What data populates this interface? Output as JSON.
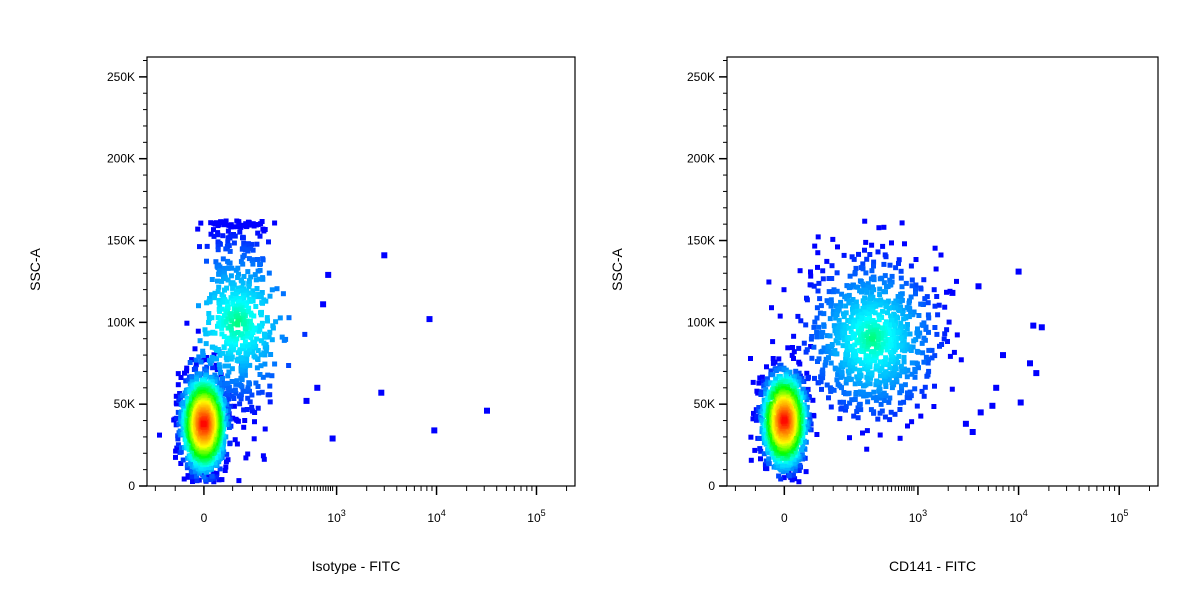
{
  "chart_data": [
    {
      "type": "scatter",
      "title": "",
      "xlabel": "Isotype - FITC",
      "ylabel": "SSC-A",
      "x_scale": "biexponential (linear near 0, log above)",
      "x_ticks": [
        {
          "value": 0,
          "label": "0"
        },
        {
          "value": 1000,
          "label": "10",
          "exp": "3"
        },
        {
          "value": 10000,
          "label": "10",
          "exp": "4"
        },
        {
          "value": 100000,
          "label": "10",
          "exp": "5"
        }
      ],
      "y_ticks": [
        {
          "value": 0,
          "label": "0"
        },
        {
          "value": 50000,
          "label": "50K"
        },
        {
          "value": 100000,
          "label": "100K"
        },
        {
          "value": 150000,
          "label": "150K"
        },
        {
          "value": 200000,
          "label": "200K"
        },
        {
          "value": 250000,
          "label": "250K"
        }
      ],
      "ylim": [
        0,
        262144
      ],
      "grid": false,
      "colormap": [
        "#0000ff",
        "#0080ff",
        "#00ffff",
        "#00ff00",
        "#ffff00",
        "#ff8000",
        "#ff0000"
      ],
      "populations": [
        {
          "x_center": 0,
          "y_center": 38000,
          "count": 1400,
          "density": "high"
        },
        {
          "x_center": 60,
          "y_center": 100000,
          "count": 600,
          "density": "low",
          "y_max": 162000
        }
      ],
      "outliers": [
        {
          "x": 3000,
          "y": 141000
        },
        {
          "x": 800,
          "y": 129000
        },
        {
          "x": 700,
          "y": 111000
        },
        {
          "x": 8500,
          "y": 102000
        },
        {
          "x": 2800,
          "y": 57000
        },
        {
          "x": 32000,
          "y": 46000
        },
        {
          "x": 9500,
          "y": 34000
        },
        {
          "x": 900,
          "y": 29000
        },
        {
          "x": 600,
          "y": 60000
        },
        {
          "x": 450,
          "y": 52000
        }
      ]
    },
    {
      "type": "scatter",
      "title": "",
      "xlabel": "CD141 - FITC",
      "ylabel": "SSC-A",
      "x_scale": "biexponential (linear near 0, log above)",
      "x_ticks": [
        {
          "value": 0,
          "label": "0"
        },
        {
          "value": 1000,
          "label": "10",
          "exp": "3"
        },
        {
          "value": 10000,
          "label": "10",
          "exp": "4"
        },
        {
          "value": 100000,
          "label": "10",
          "exp": "5"
        }
      ],
      "y_ticks": [
        {
          "value": 0,
          "label": "0"
        },
        {
          "value": 50000,
          "label": "50K"
        },
        {
          "value": 100000,
          "label": "100K"
        },
        {
          "value": 150000,
          "label": "150K"
        },
        {
          "value": 200000,
          "label": "200K"
        },
        {
          "value": 250000,
          "label": "250K"
        }
      ],
      "ylim": [
        0,
        262144
      ],
      "grid": false,
      "colormap": [
        "#0000ff",
        "#0080ff",
        "#00ffff",
        "#00ff00",
        "#ffff00",
        "#ff8000",
        "#ff0000"
      ],
      "populations": [
        {
          "x_center": 0,
          "y_center": 40000,
          "count": 1200,
          "density": "high"
        },
        {
          "x_center": 300,
          "y_center": 90000,
          "count": 900,
          "density": "medium",
          "y_max": 162000
        }
      ],
      "outliers": [
        {
          "x": 10000,
          "y": 131000
        },
        {
          "x": 4000,
          "y": 122000
        },
        {
          "x": 2200,
          "y": 118000
        },
        {
          "x": 14000,
          "y": 98000
        },
        {
          "x": 17000,
          "y": 97000
        },
        {
          "x": 7000,
          "y": 80000
        },
        {
          "x": 13000,
          "y": 75000
        },
        {
          "x": 15000,
          "y": 69000
        },
        {
          "x": 6000,
          "y": 60000
        },
        {
          "x": 10500,
          "y": 51000
        },
        {
          "x": 5500,
          "y": 49000
        },
        {
          "x": 3000,
          "y": 38000
        },
        {
          "x": 3500,
          "y": 33000
        },
        {
          "x": 4200,
          "y": 45000
        }
      ]
    }
  ]
}
